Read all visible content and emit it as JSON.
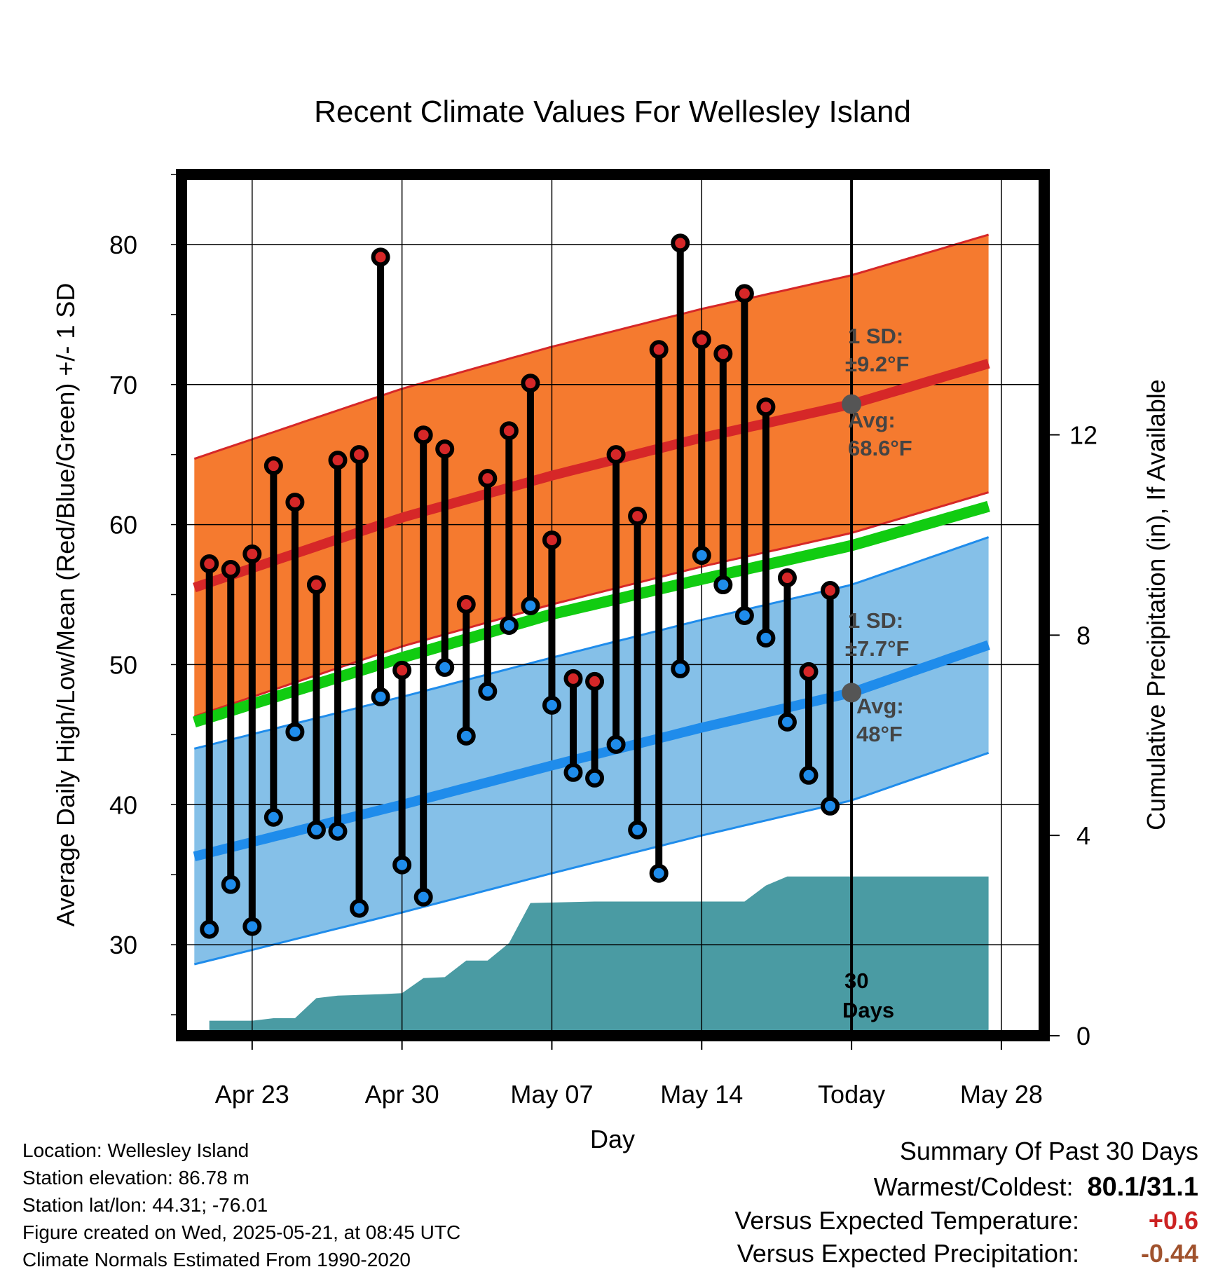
{
  "chart_data": {
    "type": "line",
    "title": "Recent Climate Values For Wellesley Island",
    "xlabel": "Day",
    "ylabel": "Average Daily High/Low/Mean (Red/Blue/Green) +/- 1 SD",
    "y2label": "Cumulative Precipitation (in), If Available",
    "ylim": [
      23.5,
      85
    ],
    "y2lim": [
      0,
      17.2
    ],
    "xlim": [
      -3.3,
      37
    ],
    "x_ticks": [
      {
        "day": 0,
        "label": "Apr 23"
      },
      {
        "day": 7,
        "label": "Apr 30"
      },
      {
        "day": 14,
        "label": "May 07"
      },
      {
        "day": 21,
        "label": "May 14"
      },
      {
        "day": 28,
        "label": "Today"
      },
      {
        "day": 35,
        "label": "May 28"
      }
    ],
    "y_ticks": [
      30,
      40,
      50,
      60,
      70,
      80
    ],
    "y2_ticks": [
      0,
      4,
      8,
      12
    ],
    "today_day": 28,
    "normal_high_mean": [
      [
        -2.7,
        55.5
      ],
      [
        7,
        60.5
      ],
      [
        14,
        63.5
      ],
      [
        21,
        66.2
      ],
      [
        28,
        68.6
      ],
      [
        34.4,
        71.5
      ]
    ],
    "normal_low_mean": [
      [
        -2.7,
        36.3
      ],
      [
        7,
        40.0
      ],
      [
        14,
        42.8
      ],
      [
        21,
        45.5
      ],
      [
        28,
        48.0
      ],
      [
        34.4,
        51.4
      ]
    ],
    "normal_daily_mean": [
      [
        -2.7,
        45.9
      ],
      [
        7,
        50.5
      ],
      [
        14,
        53.6
      ],
      [
        21,
        56.1
      ],
      [
        28,
        58.5
      ],
      [
        34.4,
        61.3
      ]
    ],
    "high_sd": 9.2,
    "low_sd": 7.7,
    "color_high": "#d62728",
    "color_high_band": "#f57a2f",
    "color_low": "#1f8ceb",
    "color_low_band": "#85c0e8",
    "color_mean": "#11cc11",
    "color_precip": "#4a9ba3",
    "daily": [
      {
        "day": -2,
        "high": 57.2,
        "low": 31.1
      },
      {
        "day": -1,
        "high": 56.8,
        "low": 34.3
      },
      {
        "day": 0,
        "high": 57.9,
        "low": 31.3
      },
      {
        "day": 1,
        "high": 64.2,
        "low": 39.1
      },
      {
        "day": 2,
        "high": 61.6,
        "low": 45.2
      },
      {
        "day": 3,
        "high": 55.7,
        "low": 38.2
      },
      {
        "day": 4,
        "high": 64.6,
        "low": 38.1
      },
      {
        "day": 5,
        "high": 65.0,
        "low": 32.6
      },
      {
        "day": 6,
        "high": 79.1,
        "low": 47.7
      },
      {
        "day": 7,
        "high": 49.6,
        "low": 35.7
      },
      {
        "day": 8,
        "high": 66.4,
        "low": 33.4
      },
      {
        "day": 9,
        "high": 65.4,
        "low": 49.8
      },
      {
        "day": 10,
        "high": 54.3,
        "low": 44.9
      },
      {
        "day": 11,
        "high": 63.3,
        "low": 48.1
      },
      {
        "day": 12,
        "high": 66.7,
        "low": 52.8
      },
      {
        "day": 13,
        "high": 70.1,
        "low": 54.2
      },
      {
        "day": 14,
        "high": 58.9,
        "low": 47.1
      },
      {
        "day": 15,
        "high": 49.0,
        "low": 42.3
      },
      {
        "day": 16,
        "high": 48.8,
        "low": 41.9
      },
      {
        "day": 17,
        "high": 65.0,
        "low": 44.3
      },
      {
        "day": 18,
        "high": 60.6,
        "low": 38.2
      },
      {
        "day": 19,
        "high": 72.5,
        "low": 35.1
      },
      {
        "day": 20,
        "high": 80.1,
        "low": 49.7
      },
      {
        "day": 21,
        "high": 73.2,
        "low": 57.8
      },
      {
        "day": 22,
        "high": 72.2,
        "low": 55.7
      },
      {
        "day": 23,
        "high": 76.5,
        "low": 53.5
      },
      {
        "day": 24,
        "high": 68.4,
        "low": 51.9
      },
      {
        "day": 25,
        "high": 56.2,
        "low": 45.9
      },
      {
        "day": 26,
        "high": 49.5,
        "low": 42.1
      },
      {
        "day": 27,
        "high": 55.3,
        "low": 39.9
      }
    ],
    "precip_cumulative": [
      [
        -2,
        0.3
      ],
      [
        0,
        0.3
      ],
      [
        1,
        0.35
      ],
      [
        2,
        0.35
      ],
      [
        3,
        0.75
      ],
      [
        4,
        0.8
      ],
      [
        6,
        0.83
      ],
      [
        7,
        0.85
      ],
      [
        8,
        1.15
      ],
      [
        9,
        1.17
      ],
      [
        10,
        1.5
      ],
      [
        11,
        1.5
      ],
      [
        12,
        1.85
      ],
      [
        13,
        2.65
      ],
      [
        16,
        2.68
      ],
      [
        23,
        2.68
      ],
      [
        24,
        3.0
      ],
      [
        25,
        3.18
      ],
      [
        34.4,
        3.18
      ]
    ],
    "annotations": {
      "high_sd_line1": "1 SD:",
      "high_sd_line2": "±9.2°F",
      "high_avg_line1": "Avg:",
      "high_avg_line2": "68.6°F",
      "low_sd_line1": "1 SD:",
      "low_sd_line2": "±7.7°F",
      "low_avg_line1": "Avg:",
      "low_avg_line2": "48°F",
      "days_line1": "30",
      "days_line2": "Days"
    }
  },
  "info": {
    "location": "Location: Wellesley Island",
    "elevation": "Station elevation: 86.78 m",
    "latlon": "Station lat/lon: 44.31; -76.01",
    "created": "Figure created on Wed, 2025-05-21, at 08:45 UTC",
    "normals": "Climate Normals Estimated From 1990-2020"
  },
  "summary": {
    "heading": "Summary Of Past 30 Days",
    "warm_label": "Warmest/Coldest:",
    "warm_value": "80.1/31.1",
    "temp_label": "Versus Expected Temperature:",
    "temp_value": "+0.6",
    "precip_label": "Versus Expected Precipitation:",
    "precip_value": "-0.44"
  }
}
